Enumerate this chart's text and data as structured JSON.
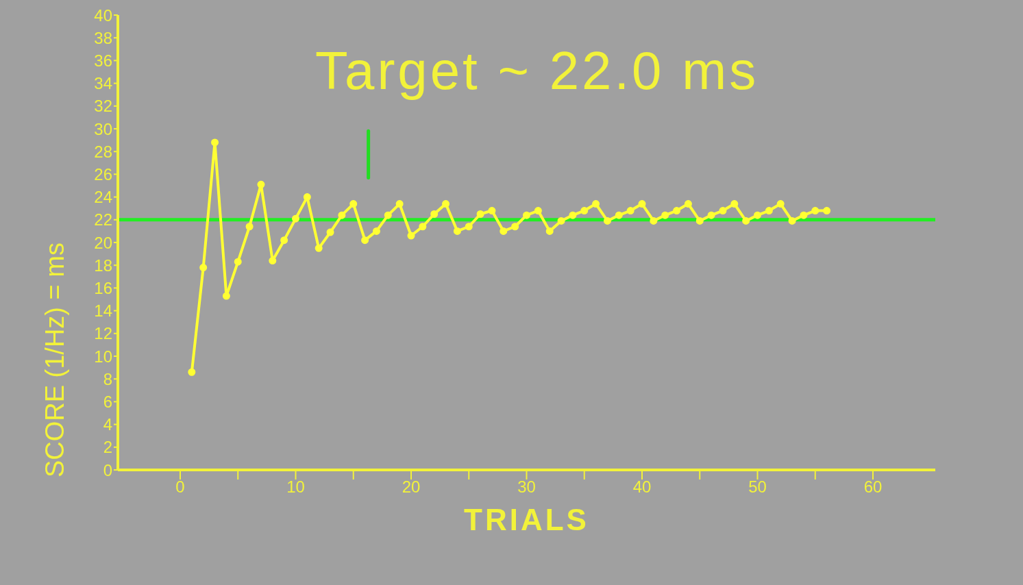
{
  "chart_data": {
    "type": "line",
    "title": "Target ~ 22.0 ms",
    "xlabel": "TRIALS",
    "ylabel": "SCORE (1/Hz) = ms",
    "x": [
      1,
      2,
      3,
      4,
      5,
      6,
      7,
      8,
      9,
      10,
      11,
      12,
      13,
      14,
      15,
      16,
      17,
      18,
      19,
      20,
      21,
      22,
      23,
      24,
      25,
      26,
      27,
      28,
      29,
      30,
      31,
      32,
      33,
      34,
      35,
      36,
      37,
      38,
      39,
      40,
      41,
      42,
      43,
      44,
      45,
      46,
      47,
      48,
      49,
      50,
      51,
      52,
      53,
      54,
      55,
      56
    ],
    "series": [
      {
        "color": "#ffff33",
        "values": [
          8.6,
          17.8,
          28.8,
          15.3,
          18.3,
          21.4,
          25.1,
          18.4,
          20.2,
          22.1,
          24.0,
          19.5,
          20.9,
          22.4,
          23.4,
          20.2,
          21.0,
          22.4,
          23.4,
          20.6,
          21.4,
          22.5,
          23.4,
          21.0,
          21.4,
          22.5,
          22.8,
          21.0,
          21.4,
          22.4,
          22.8,
          21.0,
          21.9,
          22.4,
          22.8,
          23.4,
          21.9,
          22.4,
          22.8,
          23.4,
          21.9,
          22.4,
          22.8,
          23.4,
          21.9,
          22.4,
          22.8,
          23.4,
          21.9,
          22.4,
          22.8,
          23.4,
          21.9,
          22.4,
          22.8,
          22.8
        ]
      },
      {
        "type": "line",
        "color": "#22dd22",
        "x": [
          16.3,
          16.3
        ],
        "values": [
          25.7,
          29.8
        ],
        "marker": "none"
      }
    ],
    "ref_lines": [
      {
        "axis": "y",
        "value": 22,
        "color": "#22ee22"
      }
    ],
    "xlim": [
      -5.4,
      65.4
    ],
    "xticks": [
      0,
      {
        "value": 5,
        "label": null
      },
      10,
      {
        "value": 15,
        "label": null
      },
      20,
      {
        "value": 25,
        "label": null
      },
      30,
      {
        "value": 35,
        "label": null
      },
      40,
      {
        "value": 45,
        "label": null
      },
      50,
      {
        "value": 55,
        "label": null
      },
      60
    ],
    "ylim": [
      0,
      40
    ],
    "yticks": [
      0,
      2,
      4,
      6,
      8,
      10,
      12,
      14,
      16,
      18,
      20,
      22,
      24,
      26,
      28,
      30,
      32,
      34,
      36,
      38,
      40
    ],
    "grid": false,
    "marker": "circle",
    "line_style": "solid"
  }
}
